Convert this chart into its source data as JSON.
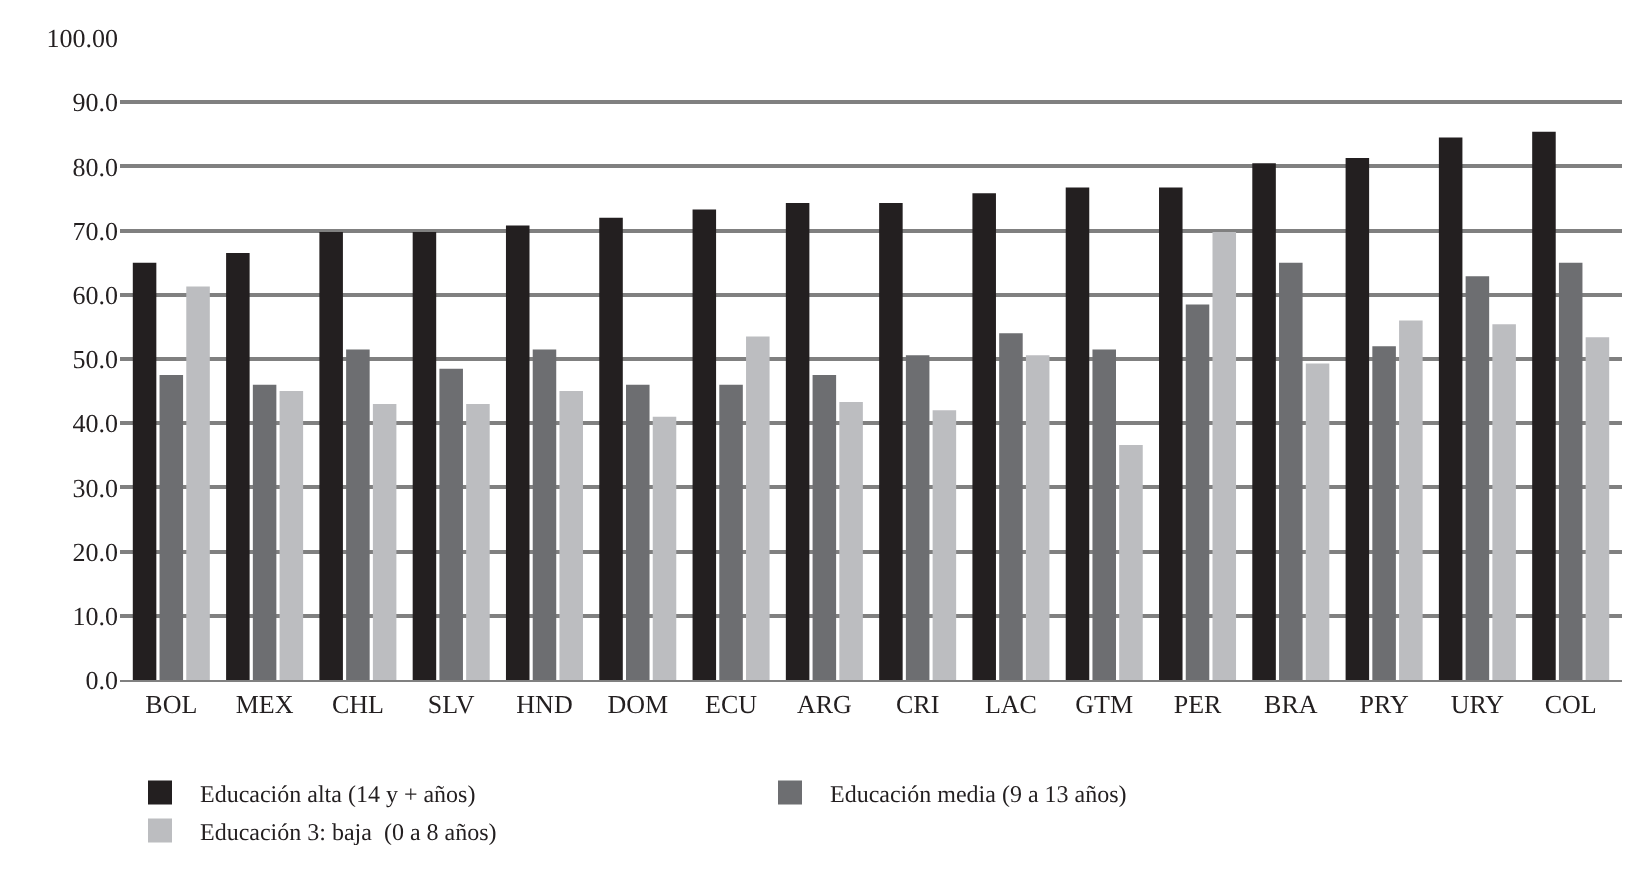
{
  "chart_data": {
    "type": "bar",
    "categories": [
      "BOL",
      "MEX",
      "CHL",
      "SLV",
      "HND",
      "DOM",
      "ECU",
      "ARG",
      "CRI",
      "LAC",
      "GTM",
      "PER",
      "BRA",
      "PRY",
      "URY",
      "COL"
    ],
    "series": [
      {
        "name": "Educación alta (14 y + años)",
        "color": "#231f20",
        "values": [
          65.0,
          66.5,
          69.8,
          69.8,
          70.8,
          72.0,
          73.3,
          74.3,
          74.3,
          75.8,
          76.7,
          76.7,
          80.5,
          81.3,
          84.5,
          85.4
        ]
      },
      {
        "name": "Educación media (9 a 13 años)",
        "color": "#6d6e71",
        "values": [
          47.5,
          46.0,
          51.5,
          48.5,
          51.5,
          46.0,
          46.0,
          47.5,
          50.6,
          54.0,
          51.5,
          58.5,
          65.0,
          52.0,
          62.9,
          65.0
        ]
      },
      {
        "name": "Educación 3: baja  (0 a 8 años)",
        "color": "#bcbdc0",
        "values": [
          61.3,
          45.0,
          43.0,
          43.0,
          45.0,
          41.0,
          53.5,
          43.3,
          42.0,
          50.6,
          36.6,
          69.8,
          49.3,
          56.0,
          55.4,
          53.4
        ]
      }
    ],
    "ylim": [
      0,
      100
    ],
    "yticks": [
      {
        "value": 0,
        "label": "0.0"
      },
      {
        "value": 10,
        "label": "10.0"
      },
      {
        "value": 20,
        "label": "20.0"
      },
      {
        "value": 30,
        "label": "30.0"
      },
      {
        "value": 40,
        "label": "40.0"
      },
      {
        "value": 50,
        "label": "50.0"
      },
      {
        "value": 60,
        "label": "60.0"
      },
      {
        "value": 70,
        "label": "70.0"
      },
      {
        "value": 80,
        "label": "80.0"
      },
      {
        "value": 90,
        "label": "90.0"
      },
      {
        "value": 100,
        "label": "100.00"
      }
    ],
    "grid": "y",
    "legend": "bottom"
  }
}
